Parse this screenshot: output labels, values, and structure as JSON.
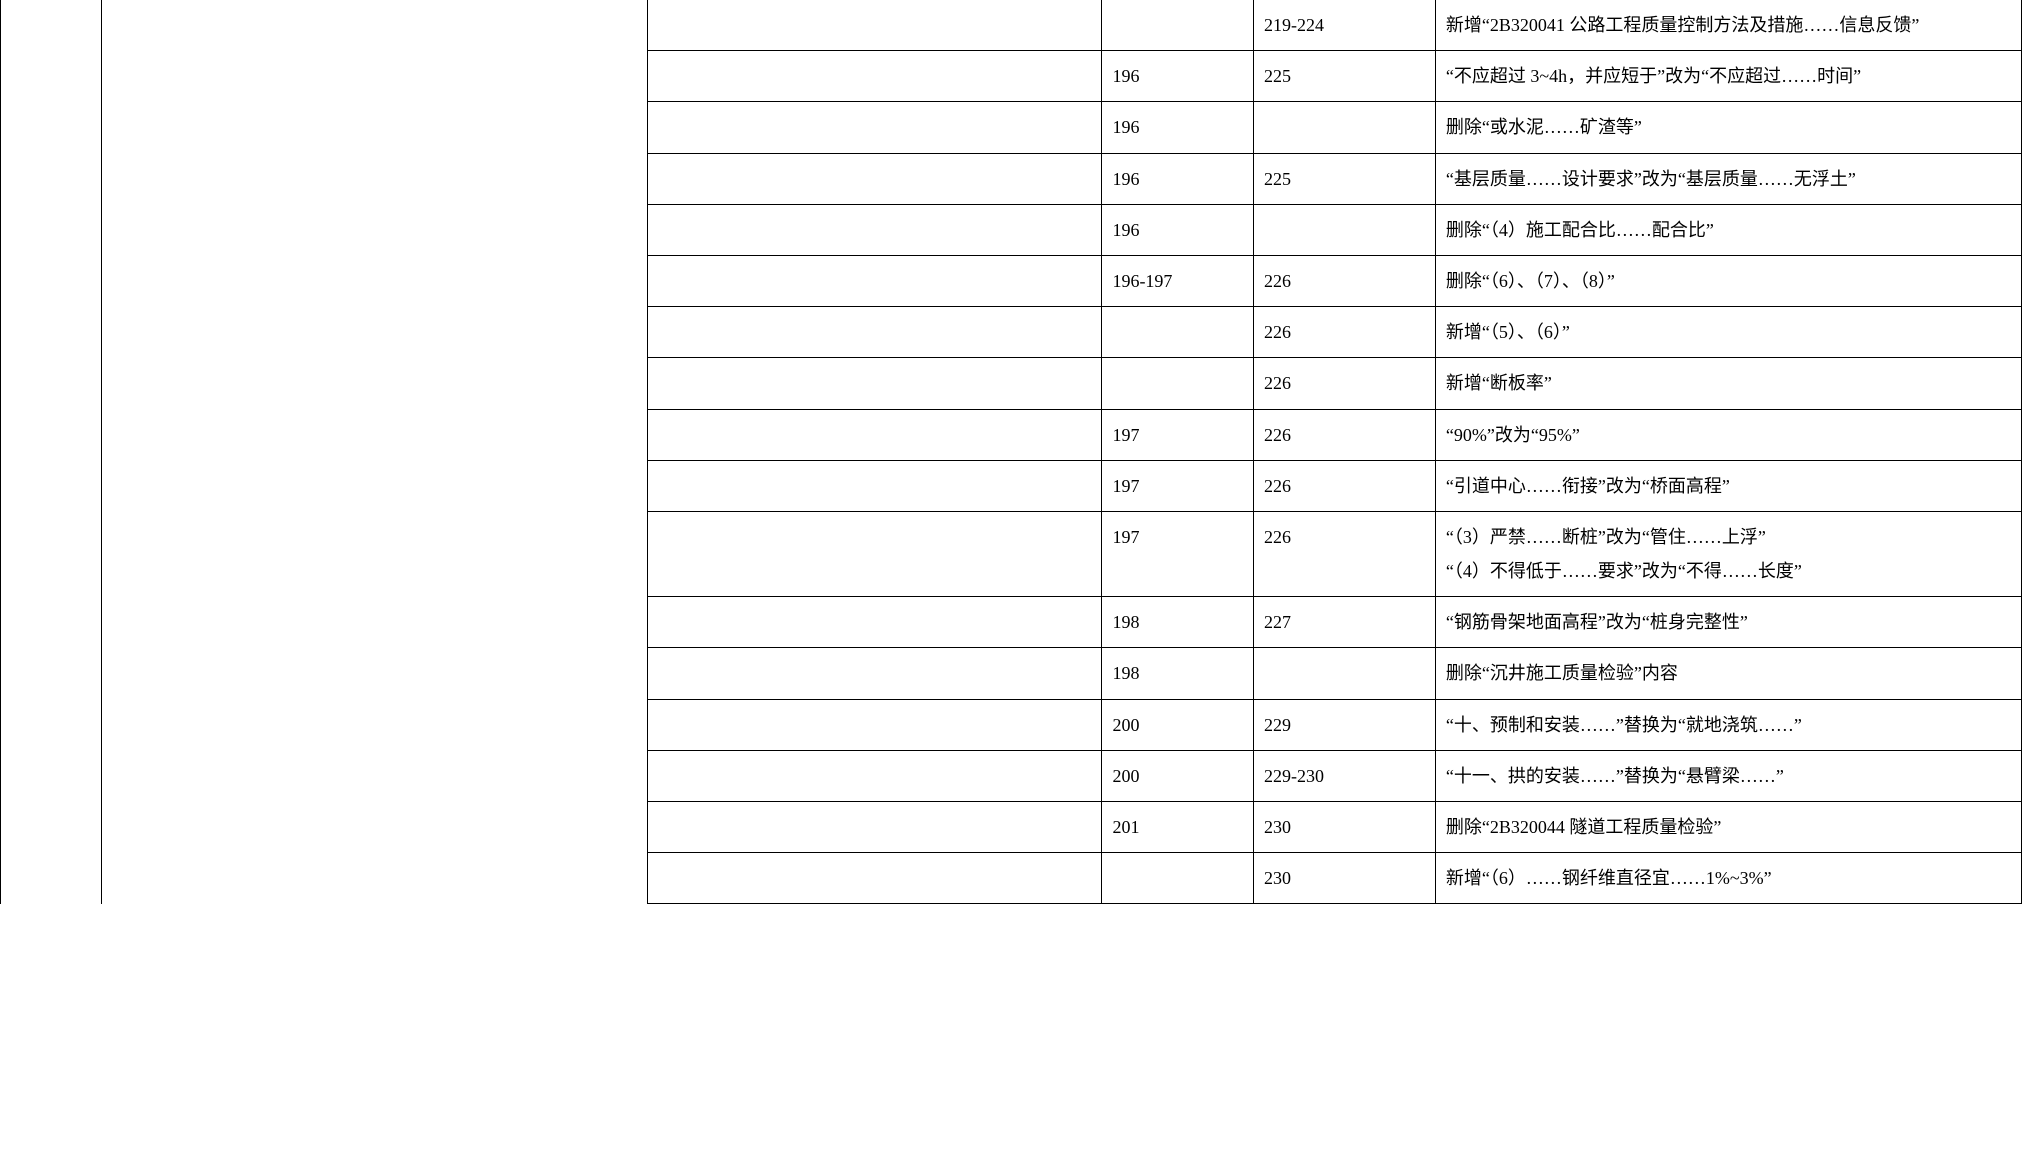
{
  "rows": [
    {
      "col4": "",
      "col5": "219-224",
      "col6": "新增“2B320041 公路工程质量控制方法及措施……信息反馈”"
    },
    {
      "col4": "196",
      "col5": "225",
      "col6": "“不应超过 3~4h，并应短于”改为“不应超过……时间”"
    },
    {
      "col4": "196",
      "col5": "",
      "col6": "删除“或水泥……矿渣等”"
    },
    {
      "col4": "196",
      "col5": "225",
      "col6": "“基层质量……设计要求”改为“基层质量……无浮土”"
    },
    {
      "col4": "196",
      "col5": "",
      "col6": "删除“（4）施工配合比……配合比”"
    },
    {
      "col4": "196-197",
      "col5": "226",
      "col6": "删除“（6）、（7）、（8）”"
    },
    {
      "col4": "",
      "col5": "226",
      "col6": "新增“（5）、（6）”"
    },
    {
      "col4": "",
      "col5": "226",
      "col6": "新增“断板率”"
    },
    {
      "col4": "197",
      "col5": "226",
      "col6": "“90%”改为“95%”"
    },
    {
      "col4": "197",
      "col5": "226",
      "col6": "“引道中心……衔接”改为“桥面高程”"
    },
    {
      "col4": "197",
      "col5": "226",
      "col6": "“（3）严禁……断桩”改为“管住……上浮”\n“（4）不得低于……要求”改为“不得……长度”"
    },
    {
      "col4": "198",
      "col5": "227",
      "col6": "“钢筋骨架地面高程”改为“桩身完整性”"
    },
    {
      "col4": "198",
      "col5": "",
      "col6": "删除“沉井施工质量检验”内容"
    },
    {
      "col4": "200",
      "col5": "229",
      "col6": "“十、预制和安装……”替换为“就地浇筑……”"
    },
    {
      "col4": "200",
      "col5": "229-230",
      "col6": "“十一、拱的安装……”替换为“悬臂梁……”"
    },
    {
      "col4": "201",
      "col5": "230",
      "col6": "删除“2B320044 隧道工程质量检验”"
    },
    {
      "col4": "",
      "col5": "230",
      "col6": "新增“（6）……钢纤维直径宜……1%~3%”"
    }
  ]
}
